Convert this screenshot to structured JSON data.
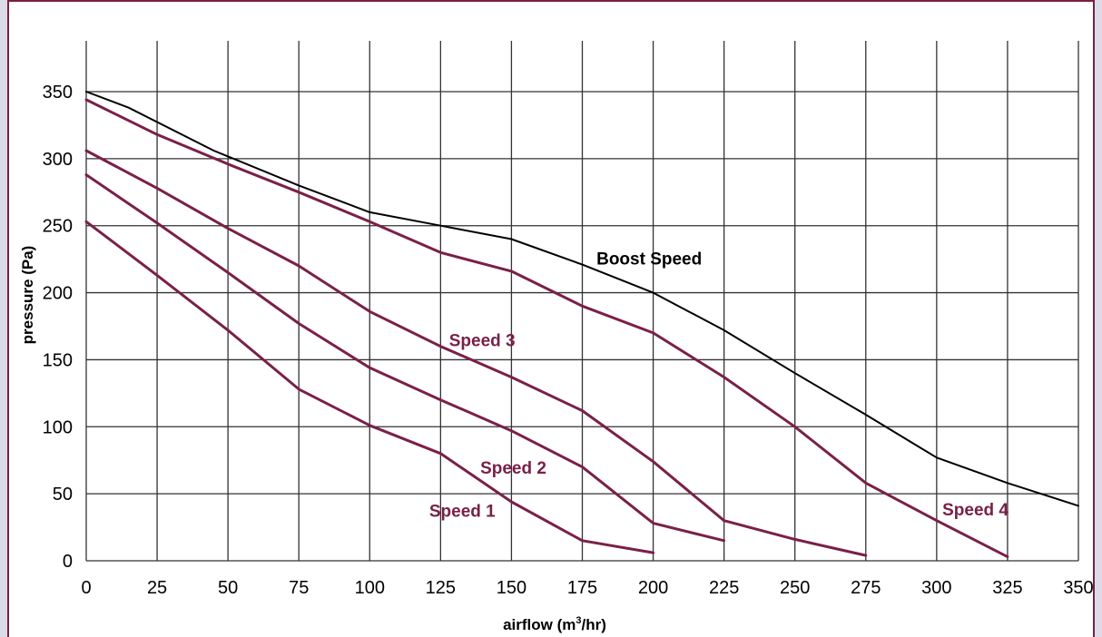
{
  "chart_data": {
    "type": "line",
    "xlabel": "airflow (m",
    "xlabel_sup": "3",
    "xlabel_tail": "/hr)",
    "ylabel": "pressure (Pa)",
    "xlim": [
      0,
      350
    ],
    "ylim": [
      0,
      350
    ],
    "x_ticks": [
      "0",
      "25",
      "50",
      "75",
      "100",
      "125",
      "150",
      "175",
      "200",
      "225",
      "250",
      "275",
      "300",
      "325",
      "350"
    ],
    "y_ticks": [
      "0",
      "50",
      "100",
      "150",
      "200",
      "250",
      "300",
      "350"
    ],
    "grid": true,
    "series": [
      {
        "name": "Boost Speed",
        "color": "#000000",
        "label_at": [
          180,
          221
        ],
        "points": [
          [
            0,
            350
          ],
          [
            15,
            338
          ],
          [
            45,
            306
          ],
          [
            75,
            280
          ],
          [
            100,
            260
          ],
          [
            125,
            250
          ],
          [
            150,
            240
          ],
          [
            175,
            221
          ],
          [
            200,
            200
          ],
          [
            225,
            172
          ],
          [
            250,
            140
          ],
          [
            275,
            109
          ],
          [
            300,
            77
          ],
          [
            325,
            58
          ],
          [
            350,
            41
          ]
        ]
      },
      {
        "name": "Speed 4",
        "color": "#7a2048",
        "label_at": [
          302,
          34
        ],
        "points": [
          [
            0,
            344
          ],
          [
            25,
            318
          ],
          [
            50,
            296
          ],
          [
            75,
            275
          ],
          [
            100,
            253
          ],
          [
            125,
            230
          ],
          [
            150,
            216
          ],
          [
            175,
            190
          ],
          [
            200,
            170
          ],
          [
            225,
            137
          ],
          [
            250,
            100
          ],
          [
            275,
            58
          ],
          [
            300,
            30
          ],
          [
            325,
            3
          ]
        ]
      },
      {
        "name": "Speed 3",
        "color": "#7a2048",
        "label_at": [
          128,
          160
        ],
        "points": [
          [
            0,
            306
          ],
          [
            25,
            278
          ],
          [
            50,
            248
          ],
          [
            75,
            220
          ],
          [
            100,
            186
          ],
          [
            125,
            160
          ],
          [
            150,
            137
          ],
          [
            175,
            112
          ],
          [
            200,
            74
          ],
          [
            225,
            30
          ],
          [
            250,
            16
          ],
          [
            275,
            4
          ]
        ]
      },
      {
        "name": "Speed 2",
        "color": "#7a2048",
        "label_at": [
          139,
          65
        ],
        "points": [
          [
            0,
            288
          ],
          [
            25,
            252
          ],
          [
            50,
            215
          ],
          [
            75,
            177
          ],
          [
            100,
            144
          ],
          [
            125,
            120
          ],
          [
            150,
            97
          ],
          [
            175,
            70
          ],
          [
            200,
            28
          ],
          [
            225,
            15
          ]
        ]
      },
      {
        "name": "Speed 1",
        "color": "#7a2048",
        "label_at": [
          121,
          33
        ],
        "points": [
          [
            0,
            253
          ],
          [
            25,
            213
          ],
          [
            50,
            172
          ],
          [
            75,
            128
          ],
          [
            100,
            101
          ],
          [
            125,
            80
          ],
          [
            150,
            44
          ],
          [
            175,
            15
          ],
          [
            200,
            6
          ]
        ]
      }
    ]
  }
}
